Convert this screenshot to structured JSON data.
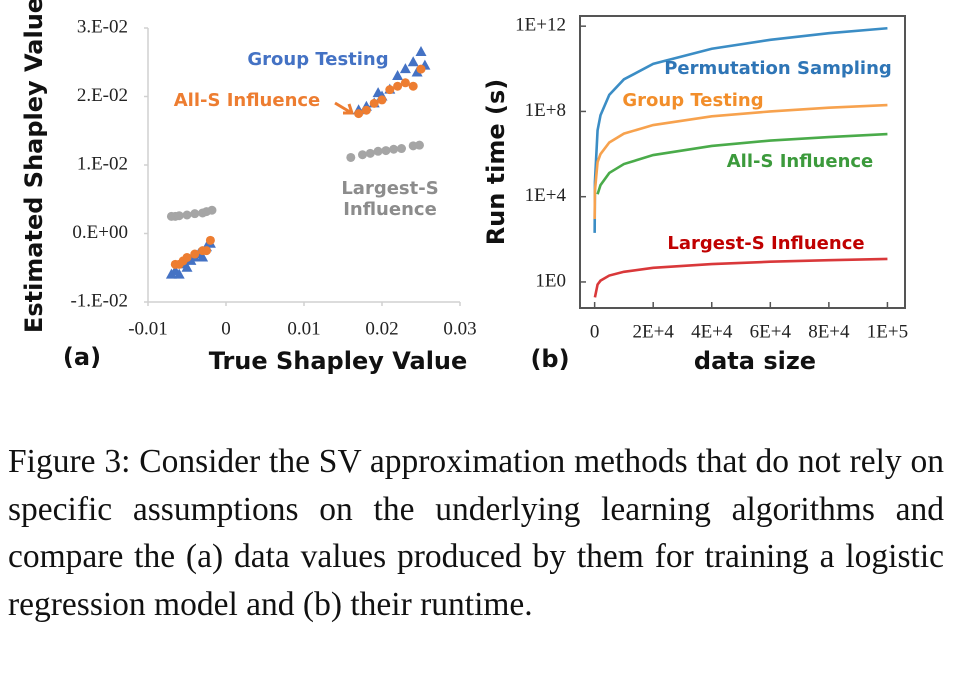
{
  "chart_data": [
    {
      "type": "scatter",
      "label": "(a)",
      "x_label": "True Shapley Value",
      "y_label": "Estimated Shapley Value",
      "xlim": [
        -0.01,
        0.03
      ],
      "xticks": [
        -0.01,
        0,
        0.01,
        0.02,
        0.03
      ],
      "ylim": [
        -0.01,
        0.03
      ],
      "yticks": [
        {
          "value": -0.01,
          "label": "-1.E-02"
        },
        {
          "value": 0,
          "label": "0.E+00"
        },
        {
          "value": 0.01,
          "label": "1.E-02"
        },
        {
          "value": 0.02,
          "label": "2.E-02"
        },
        {
          "value": 0.03,
          "label": "3.E-02"
        }
      ],
      "series": [
        {
          "name": "Largest-S Influence",
          "color": "#a5a5a5",
          "marker": "circle",
          "x": [
            -0.007,
            -0.0065,
            -0.006,
            -0.005,
            -0.004,
            -0.003,
            -0.0025,
            -0.0018,
            0.016,
            0.0175,
            0.0185,
            0.0195,
            0.0205,
            0.0215,
            0.0225,
            0.024,
            0.0248
          ],
          "values": [
            0.0025,
            0.0025,
            0.0026,
            0.0027,
            0.0029,
            0.003,
            0.0032,
            0.0034,
            0.0111,
            0.0115,
            0.0117,
            0.012,
            0.0121,
            0.0123,
            0.0124,
            0.0128,
            0.0129
          ]
        },
        {
          "name": "Group Testing",
          "color": "#4472c4",
          "marker": "triangle",
          "x": [
            -0.007,
            -0.0065,
            -0.006,
            -0.0055,
            -0.005,
            -0.0045,
            -0.004,
            -0.0035,
            -0.003,
            -0.0025,
            -0.002,
            0.017,
            0.018,
            0.019,
            0.0195,
            0.02,
            0.021,
            0.022,
            0.023,
            0.024,
            0.0245,
            0.025,
            0.0255
          ],
          "values": [
            -0.006,
            -0.0055,
            -0.006,
            -0.0045,
            -0.005,
            -0.004,
            -0.0035,
            -0.003,
            -0.0035,
            -0.002,
            -0.0015,
            0.018,
            0.0185,
            0.019,
            0.0205,
            0.02,
            0.021,
            0.023,
            0.024,
            0.025,
            0.0235,
            0.0265,
            0.0245
          ]
        },
        {
          "name": "All-S Influence",
          "color": "#ed7d31",
          "marker": "circle",
          "x": [
            -0.0065,
            -0.006,
            -0.0055,
            -0.005,
            -0.004,
            -0.003,
            -0.0025,
            -0.002,
            0.017,
            0.018,
            0.019,
            0.02,
            0.021,
            0.022,
            0.023,
            0.024,
            0.025
          ],
          "values": [
            -0.0045,
            -0.0045,
            -0.004,
            -0.0035,
            -0.003,
            -0.0025,
            -0.0025,
            -0.001,
            0.0175,
            0.018,
            0.019,
            0.0195,
            0.021,
            0.0215,
            0.022,
            0.0215,
            0.024
          ]
        }
      ]
    },
    {
      "type": "line",
      "label": "(b)",
      "x_label": "data size",
      "y_label": "Run time (s)",
      "xlim": [
        -5000,
        106000
      ],
      "xticks": [
        0,
        {
          "value": 20000,
          "label": "2E+4"
        },
        {
          "value": 40000,
          "label": "4E+4"
        },
        {
          "value": 60000,
          "label": "6E+4"
        },
        {
          "value": 80000,
          "label": "8E+4"
        },
        {
          "value": 100000,
          "label": "1E+5"
        }
      ],
      "ylog": true,
      "ylim": [
        0.06,
        3000000000000
      ],
      "yticks": [
        {
          "value": 1,
          "label": "1E0"
        },
        {
          "value": 10000,
          "label": "1E+4"
        },
        {
          "value": 100000000,
          "label": "1E+8"
        },
        {
          "value": 1000000000000,
          "label": "1E+12"
        }
      ],
      "x": [
        10,
        100,
        1000,
        2000,
        5000,
        10000,
        20000,
        40000,
        60000,
        80000,
        100000
      ],
      "series": [
        {
          "name": "Permutation Sampling",
          "color": "#3b8dc5",
          "label_color": "#2e75b6",
          "values": [
            200,
            50000,
            13000000,
            66000000,
            600000000,
            3200000000,
            17000000000,
            87000000000,
            230000000000,
            470000000000,
            800000000000
          ]
        },
        {
          "name": "Group Testing",
          "color": "#f7a24e",
          "label_color": "#f28e2b",
          "values": [
            900,
            19000,
            420000,
            1000000,
            3500000,
            9100000,
            23000000,
            59000000,
            100000000,
            150000000,
            200000000
          ]
        },
        {
          "name": "All-S Influence",
          "color": "#4aab4a",
          "label_color": "#3c9a3c",
          "values": [
            null,
            null,
            13000,
            35000,
            130000,
            340000,
            900000,
            2400000,
            4300000,
            6300000,
            8700000
          ]
        },
        {
          "name": "Largest-S Influence",
          "color": "#d9383a",
          "label_color": "#c00000",
          "values": [
            null,
            0.19,
            0.76,
            1.15,
            2,
            3,
            4.6,
            6.9,
            8.9,
            10.5,
            12
          ]
        }
      ]
    }
  ],
  "caption": "Figure 3: Consider the SV approximation methods that do not rely on specific assumptions on the underlying learning algorithms and compare the (a) data values produced by them for training a logistic regression model and (b) their runtime."
}
